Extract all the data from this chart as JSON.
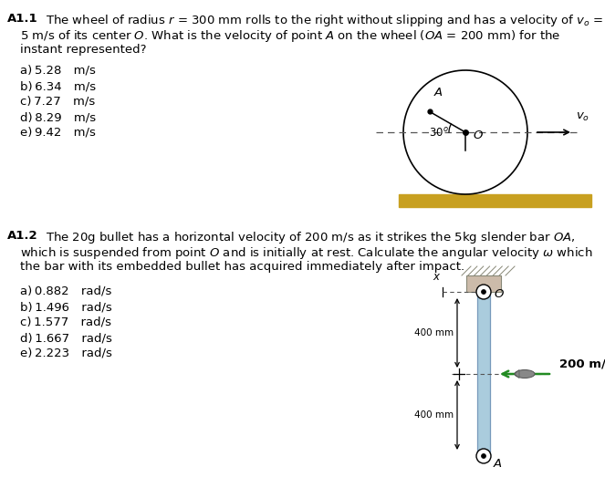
{
  "bg_color": "#ffffff",
  "q1_label": "A1.1",
  "q2_label": "A1.2",
  "q1_options": [
    "a) 5.28 m/s",
    "b) 6.34 m/s",
    "c) 7.27 m/s",
    "d) 8.29 m/s",
    "e) 9.42 m/s"
  ],
  "q2_options": [
    "a) 0.882 rad/s",
    "b) 1.496 rad/s",
    "c) 1.577 rad/s",
    "d) 1.667 rad/s",
    "e) 2.223 rad/s"
  ],
  "ground_color": "#c8a020",
  "bar_fill_color": "#aaccdd",
  "bar_edge_color": "#7799bb",
  "green_color": "#228B22",
  "bracket_color": "#ccbbaa",
  "bullet_color": "#888888"
}
